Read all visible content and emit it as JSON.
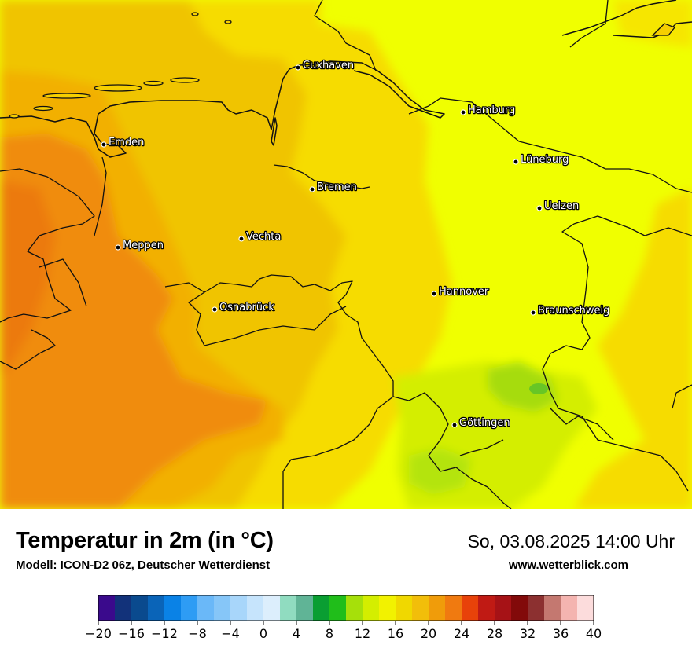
{
  "map": {
    "title": "Temperatur in 2m (in °C)",
    "model": "Modell: ICON-D2 06z, Deutscher Wetterdienst",
    "datetime": "So, 03.08.2025 14:00 Uhr",
    "website": "www.wetterblick.com",
    "cities": [
      {
        "name": "Cuxhaven"
      },
      {
        "name": "Hamburg"
      },
      {
        "name": "Emden"
      },
      {
        "name": "Lüneburg"
      },
      {
        "name": "Bremen"
      },
      {
        "name": "Uelzen"
      },
      {
        "name": "Vechta"
      },
      {
        "name": "Meppen"
      },
      {
        "name": "Hannover"
      },
      {
        "name": "Osnabrück"
      },
      {
        "name": "Braunschweig"
      },
      {
        "name": "Göttingen"
      }
    ]
  },
  "legend": {
    "ticks": [
      "−20",
      "−16",
      "−12",
      "−8",
      "−4",
      "0",
      "4",
      "8",
      "12",
      "16",
      "20",
      "24",
      "28",
      "32",
      "36",
      "40"
    ],
    "colors": [
      "#3a0a8c",
      "#12327a",
      "#0a4a8e",
      "#0a64b8",
      "#0a82e6",
      "#2e9cf4",
      "#6ab8f8",
      "#86c6f8",
      "#a8d6fa",
      "#c6e4fc",
      "#dceefc",
      "#90dcc0",
      "#60b496",
      "#0a9e32",
      "#20be1a",
      "#a6e00a",
      "#d4ee00",
      "#f2f200",
      "#f0d800",
      "#f2be0a",
      "#f09c0a",
      "#f07a10",
      "#e8420a",
      "#c01a14",
      "#a61216",
      "#820a0a",
      "#8c3030",
      "#c47870",
      "#f4b4b0",
      "#fcdcdc"
    ]
  }
}
